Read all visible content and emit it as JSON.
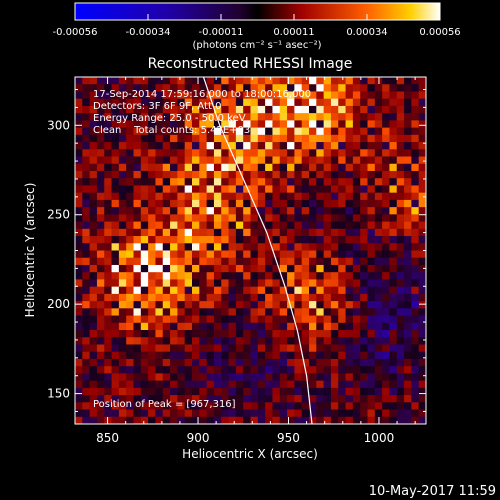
{
  "chart_data": {
    "type": "heatmap",
    "title": "Reconstructed RHESSI Image",
    "xlabel": "Heliocentric X (arcsec)",
    "ylabel": "Heliocentric Y (arcsec)",
    "xlim": [
      832,
      1026
    ],
    "ylim": [
      133,
      327
    ],
    "x_ticks": [
      850,
      900,
      950,
      1000
    ],
    "y_ticks": [
      150,
      200,
      250,
      300
    ],
    "colorbar": {
      "ticks": [
        "-0.00056",
        "-0.00034",
        "-0.00011",
        "0.00011",
        "0.00034",
        "0.00056"
      ],
      "unit_label": "(photons cm⁻² s⁻¹ asec⁻²)",
      "range": [
        -0.00056,
        0.00056
      ]
    },
    "annotations": [
      "17-Sep-2014 17:59:16.000 to 18:00:16.000",
      "Detectors: 3F 6F 9F, Att 0",
      "Energy Range: 25.0 - 50.0 keV",
      "Clean    Total counts: 5.42E+03"
    ],
    "peak_label": "Position of Peak = [967,316]",
    "peak": [
      967,
      316
    ],
    "limb_curve": [
      [
        903,
        327
      ],
      [
        912,
        300
      ],
      [
        925,
        270
      ],
      [
        938,
        240
      ],
      [
        948,
        210
      ],
      [
        955,
        185
      ],
      [
        960,
        160
      ],
      [
        963,
        133
      ]
    ],
    "bright_regions": [
      {
        "x": 872,
        "y": 215,
        "strength": 1.0
      },
      {
        "x": 922,
        "y": 300,
        "strength": 0.85
      },
      {
        "x": 962,
        "y": 308,
        "strength": 1.0
      },
      {
        "x": 905,
        "y": 255,
        "strength": 0.7
      },
      {
        "x": 965,
        "y": 205,
        "strength": 0.75
      },
      {
        "x": 1015,
        "y": 260,
        "strength": 0.55
      }
    ],
    "dark_regions": [
      {
        "x": 1005,
        "y": 190,
        "strength": 1.0
      },
      {
        "x": 990,
        "y": 240,
        "strength": 0.6
      },
      {
        "x": 930,
        "y": 170,
        "strength": 0.5
      }
    ],
    "grid_cols": 48,
    "grid_rows": 48
  },
  "timestamp": "10-May-2017 11:59"
}
